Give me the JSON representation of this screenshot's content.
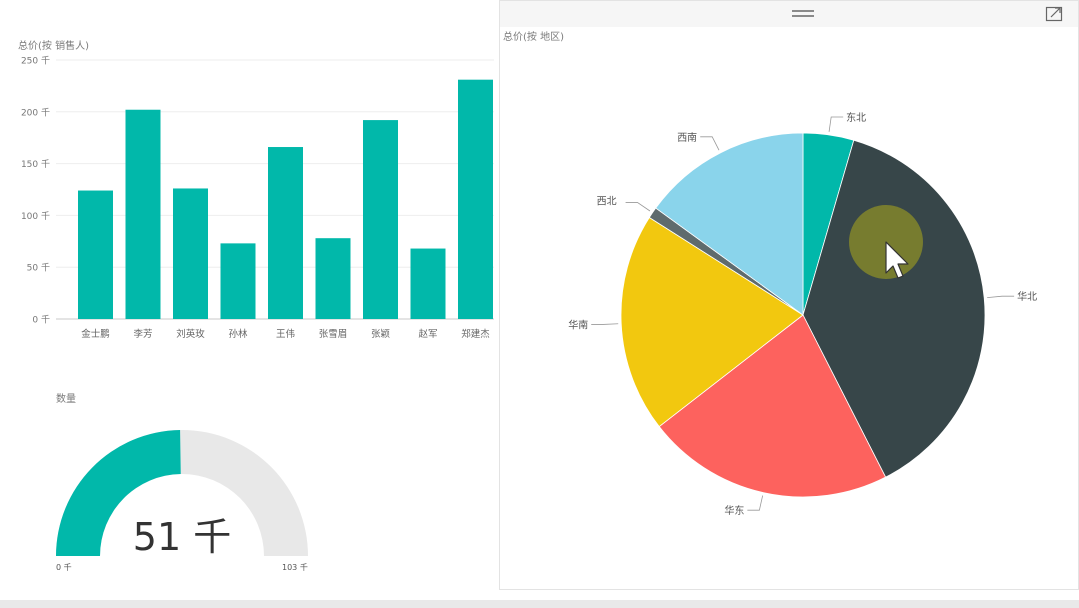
{
  "bar_panel": {
    "title": "总价(按 销售人)"
  },
  "gauge_panel": {
    "title": "数量",
    "value_label": "51 千",
    "min_label": "0 千",
    "max_label": "103 千"
  },
  "pie_panel": {
    "title": "总价(按 地区)"
  },
  "colors": {
    "teal": "#01B8AA",
    "gauge_track": "#E8E8E8",
    "huabei": "#374649",
    "huadong": "#FD625E",
    "huanan": "#F2C80F",
    "xibei": "#5F6B6D",
    "xinan": "#8AD4EB",
    "dongbei": "#01B8AA",
    "cursor_highlight": "#7A7F2E"
  },
  "icons": {
    "drag_handle": "drag-handle-icon",
    "focus_mode": "focus-mode-icon",
    "cursor": "mouse-pointer-icon"
  },
  "chart_data": [
    {
      "type": "bar",
      "title": "总价(按 销售人)",
      "xlabel": "",
      "ylabel": "",
      "categories": [
        "金士鹏",
        "李芳",
        "刘英玫",
        "孙林",
        "王伟",
        "张雪眉",
        "张颖",
        "赵军",
        "郑建杰"
      ],
      "values": [
        124,
        202,
        126,
        73,
        166,
        78,
        192,
        68,
        231
      ],
      "ylim": [
        0,
        250
      ],
      "yticks": [
        0,
        50,
        100,
        150,
        200,
        250
      ],
      "ytick_labels": [
        "0 千",
        "50 千",
        "100 千",
        "150 千",
        "200 千",
        "250 千"
      ],
      "grid": true,
      "color": "#01B8AA"
    },
    {
      "type": "gauge",
      "title": "数量",
      "value": 51,
      "min": 0,
      "max": 103,
      "unit": "千",
      "value_label": "51 千",
      "min_label": "0 千",
      "max_label": "103 千"
    },
    {
      "type": "pie",
      "title": "总价(按 地区)",
      "slices": [
        {
          "label": "东北",
          "value": 4.5,
          "color": "#01B8AA"
        },
        {
          "label": "华北",
          "value": 38,
          "color": "#374649"
        },
        {
          "label": "华东",
          "value": 22,
          "color": "#FD625E"
        },
        {
          "label": "华南",
          "value": 19.5,
          "color": "#F2C80F"
        },
        {
          "label": "西北",
          "value": 1,
          "color": "#5F6B6D"
        },
        {
          "label": "西南",
          "value": 15,
          "color": "#8AD4EB"
        }
      ],
      "legend": "none"
    }
  ]
}
